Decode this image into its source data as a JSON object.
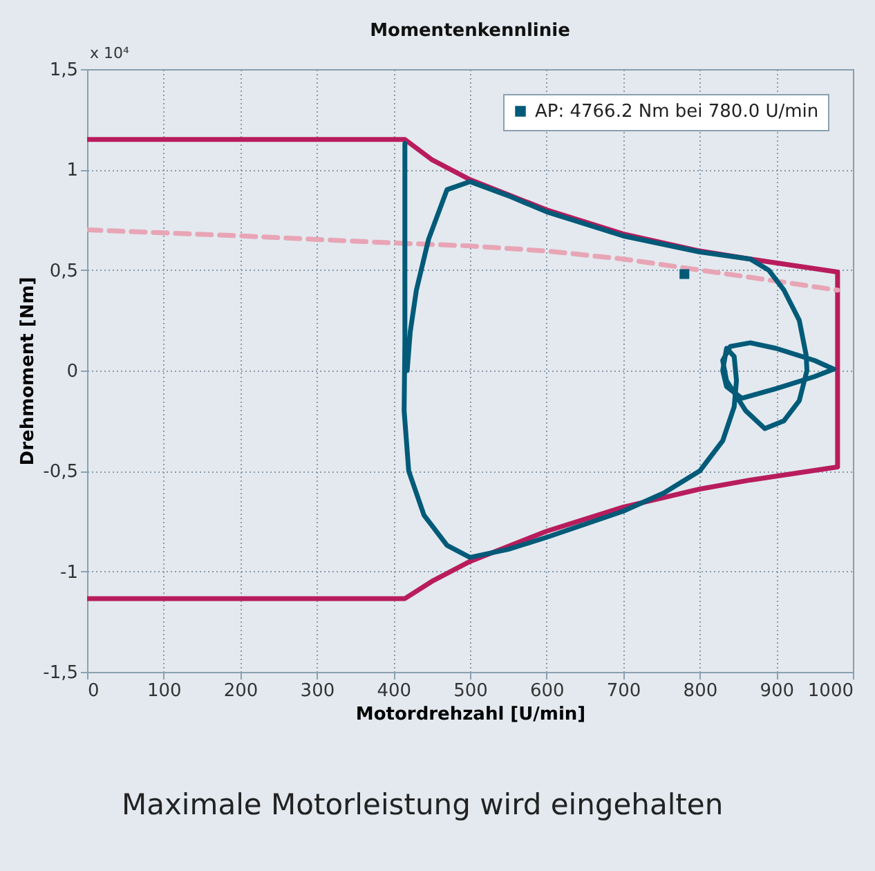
{
  "chart_data": {
    "type": "line",
    "title": "Momentenkennlinie",
    "xlabel": "Motordrehzahl [U/min]",
    "ylabel": "Drehmoment [Nm]",
    "xlim": [
      0,
      1000
    ],
    "xticks": [
      0,
      100,
      200,
      300,
      400,
      500,
      600,
      700,
      800,
      900,
      1000
    ],
    "ylim": [
      -1.5,
      1.5
    ],
    "yticks": [
      {
        "value": -1.5,
        "label": "-1,5"
      },
      {
        "value": -1,
        "label": "-1"
      },
      {
        "value": -0.5,
        "label": "-0,5"
      },
      {
        "value": 0,
        "label": "0"
      },
      {
        "value": 0.5,
        "label": "0,5"
      },
      {
        "value": 1,
        "label": "1"
      },
      {
        "value": 1.5,
        "label": "1,5"
      }
    ],
    "grid": true,
    "legend": "top right",
    "annotations": [
      "x 10⁴",
      "Maximale Motorleistung wird eingehalten"
    ],
    "series": [
      {
        "color": "#b81c5c",
        "line_style": "solid",
        "x": [
          0,
          415,
          450,
          500,
          600,
          700,
          800,
          866,
          980,
          980,
          866,
          800,
          700,
          600,
          500,
          450,
          415,
          0
        ],
        "values": [
          1.15,
          1.15,
          1.05,
          0.95,
          0.8,
          0.68,
          0.595,
          0.555,
          0.49,
          -0.48,
          -0.545,
          -0.59,
          -0.68,
          -0.8,
          -0.95,
          -1.05,
          -1.135,
          -1.135
        ]
      },
      {
        "color": "#e8a5b5",
        "line_style": "dashed",
        "x": [
          0,
          200,
          400,
          500,
          600,
          700,
          800,
          900,
          980
        ],
        "values": [
          0.7,
          0.67,
          0.635,
          0.62,
          0.595,
          0.555,
          0.5,
          0.445,
          0.4
        ]
      },
      {
        "color": "#005a78",
        "line_style": "solid",
        "x": [
          415,
          415,
          415,
          414,
          420,
          440,
          470,
          500,
          550,
          600,
          700,
          753,
          800,
          830,
          845,
          848,
          845,
          835,
          830,
          835,
          855,
          900,
          950,
          975,
          950,
          900,
          866,
          840,
          830,
          835,
          860,
          885,
          910,
          930,
          940,
          939,
          930,
          910,
          890,
          866,
          800,
          700,
          600,
          550,
          500,
          470,
          446,
          430,
          422,
          418
        ],
        "values": [
          1.13,
          0.4,
          0.15,
          -0.2,
          -0.5,
          -0.72,
          -0.87,
          -0.93,
          -0.89,
          -0.83,
          -0.7,
          -0.61,
          -0.5,
          -0.35,
          -0.18,
          -0.05,
          0.07,
          0.11,
          0,
          -0.08,
          -0.138,
          -0.09,
          -0.03,
          0.007,
          0.05,
          0.11,
          0.138,
          0.12,
          0.05,
          -0.05,
          -0.2,
          -0.289,
          -0.25,
          -0.15,
          0,
          0.076,
          0.25,
          0.4,
          0.5,
          0.555,
          0.59,
          0.67,
          0.79,
          0.87,
          0.94,
          0.9,
          0.654,
          0.4,
          0.193,
          0
        ]
      },
      {
        "type": "scatter",
        "name": "AP: 4766.2 Nm bei 780.0 U/min",
        "color": "#005a78",
        "marker": "square",
        "x": [
          780
        ],
        "values": [
          0.48
        ]
      }
    ]
  }
}
